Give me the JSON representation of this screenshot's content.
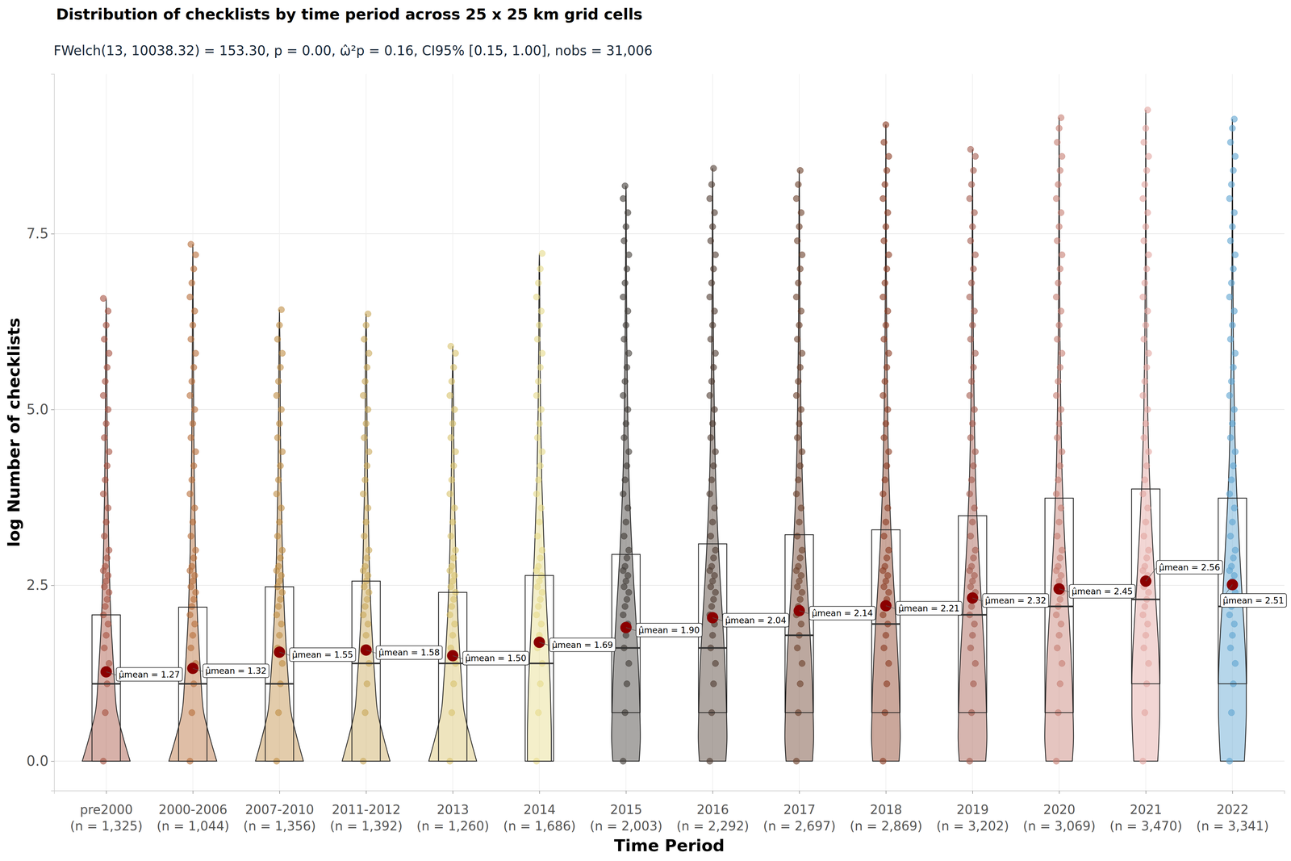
{
  "chart_data": {
    "type": "violin_box",
    "title": "Distribution of checklists by time period across 25 x 25 km grid cells",
    "subtitle": "FWelch(13, 10038.32) = 153.30, p = 0.00, ω̂²p = 0.16, CI95% [0.15, 1.00], nobs = 31,006",
    "x_label": "Time Period",
    "y_label": "log Number of checklists",
    "categories": [
      "pre2000",
      "2000-2006",
      "2007-2010",
      "2011-2012",
      "2013",
      "2014",
      "2015",
      "2016",
      "2017",
      "2018",
      "2019",
      "2020",
      "2021",
      "2022"
    ],
    "category_counts": [
      "(n = 1,325)",
      "(n = 1,044)",
      "(n = 1,356)",
      "(n = 1,392)",
      "(n = 1,260)",
      "(n = 1,686)",
      "(n = 2,003)",
      "(n = 2,292)",
      "(n = 2,697)",
      "(n = 2,869)",
      "(n = 3,202)",
      "(n = 3,069)",
      "(n = 3,470)",
      "(n = 3,341)"
    ],
    "colors": [
      "#A65141",
      "#B86E3A",
      "#C08D45",
      "#C9A95A",
      "#D9C36E",
      "#E6DB8A",
      "#3F3A36",
      "#4E3B30",
      "#6B3F2A",
      "#8A3B22",
      "#A35B4E",
      "#C67E73",
      "#E3A5A0",
      "#5DA3D0"
    ],
    "ylim": [
      -0.42,
      9.77
    ],
    "yticks": [
      {
        "value": 0,
        "label": "0.0"
      },
      2.5,
      {
        "value": 5,
        "label": "5.0"
      },
      7.5
    ],
    "grid": true,
    "min": [
      0,
      0,
      0,
      0,
      0,
      0,
      0,
      0,
      0,
      0,
      0,
      0,
      0,
      0
    ],
    "q1": [
      0,
      0,
      0,
      0,
      0,
      0,
      0.69,
      0.69,
      0.69,
      0.69,
      0.69,
      0.69,
      1.1,
      1.1
    ],
    "median": [
      1.1,
      1.1,
      1.1,
      1.39,
      1.39,
      1.39,
      1.61,
      1.61,
      1.79,
      1.95,
      2.08,
      2.2,
      2.3,
      2.2
    ],
    "q3": [
      2.08,
      2.19,
      2.48,
      2.56,
      2.4,
      2.64,
      2.94,
      3.09,
      3.22,
      3.29,
      3.49,
      3.74,
      3.87,
      3.74
    ],
    "max": [
      6.58,
      7.35,
      6.42,
      6.36,
      5.9,
      7.22,
      8.18,
      8.43,
      8.4,
      9.05,
      8.7,
      9.15,
      9.26,
      9.13
    ],
    "means": [
      1.27,
      1.32,
      1.55,
      1.58,
      1.5,
      1.69,
      1.9,
      2.04,
      2.14,
      2.21,
      2.32,
      2.45,
      2.56,
      2.51
    ],
    "mean_labels": [
      "μ̂mean = 1.27",
      "μ̂mean = 1.32",
      "μ̂mean = 1.55",
      "μ̂mean = 1.58",
      "μ̂mean = 1.50",
      "μ̂mean = 1.69",
      "μ̂mean = 1.90",
      "μ̂mean = 2.04",
      "μ̂mean = 2.14",
      "μ̂mean = 2.21",
      "μ̂mean = 2.32",
      "μ̂mean = 2.45",
      "μ̂mean = 2.56",
      "μ̂mean = 2.51"
    ],
    "violin_levels": [
      0,
      0.35,
      0.7,
      1.1,
      1.5,
      2,
      2.5,
      3,
      4,
      5,
      6,
      7,
      8,
      9
    ],
    "violin_density": [
      [
        1.0,
        0.7,
        0.45,
        0.35,
        0.28,
        0.2,
        0.15,
        0.11,
        0.06,
        0.035,
        0.02,
        0.01,
        0.005,
        0.002
      ],
      [
        1.0,
        0.7,
        0.45,
        0.35,
        0.28,
        0.2,
        0.15,
        0.11,
        0.06,
        0.035,
        0.02,
        0.01,
        0.005,
        0.002
      ],
      [
        1.0,
        0.72,
        0.48,
        0.38,
        0.3,
        0.22,
        0.16,
        0.12,
        0.06,
        0.035,
        0.02,
        0.01,
        0.005,
        0.002
      ],
      [
        1.0,
        0.72,
        0.48,
        0.38,
        0.3,
        0.22,
        0.16,
        0.12,
        0.06,
        0.035,
        0.02,
        0.01,
        0.005,
        0.002
      ],
      [
        1.0,
        0.72,
        0.48,
        0.38,
        0.3,
        0.22,
        0.16,
        0.12,
        0.06,
        0.035,
        0.02,
        0.01,
        0.005,
        0.002
      ],
      [
        0.5,
        0.5,
        0.48,
        0.45,
        0.4,
        0.33,
        0.26,
        0.2,
        0.1,
        0.05,
        0.025,
        0.012,
        0.005,
        0.002
      ],
      [
        0.55,
        0.6,
        0.58,
        0.55,
        0.5,
        0.42,
        0.33,
        0.25,
        0.13,
        0.07,
        0.035,
        0.018,
        0.01,
        0.005
      ],
      [
        0.55,
        0.6,
        0.58,
        0.55,
        0.5,
        0.42,
        0.33,
        0.25,
        0.13,
        0.07,
        0.035,
        0.018,
        0.01,
        0.005
      ],
      [
        0.55,
        0.6,
        0.58,
        0.55,
        0.5,
        0.42,
        0.33,
        0.25,
        0.13,
        0.07,
        0.035,
        0.018,
        0.01,
        0.005
      ],
      [
        0.55,
        0.6,
        0.58,
        0.55,
        0.5,
        0.42,
        0.33,
        0.25,
        0.13,
        0.07,
        0.035,
        0.018,
        0.01,
        0.005
      ],
      [
        0.55,
        0.6,
        0.58,
        0.55,
        0.5,
        0.42,
        0.33,
        0.25,
        0.13,
        0.07,
        0.035,
        0.018,
        0.01,
        0.005
      ],
      [
        0.55,
        0.6,
        0.58,
        0.55,
        0.5,
        0.42,
        0.33,
        0.25,
        0.13,
        0.07,
        0.035,
        0.018,
        0.01,
        0.005
      ],
      [
        0.5,
        0.55,
        0.58,
        0.58,
        0.55,
        0.47,
        0.38,
        0.3,
        0.16,
        0.08,
        0.04,
        0.02,
        0.01,
        0.005
      ],
      [
        0.5,
        0.55,
        0.58,
        0.58,
        0.55,
        0.47,
        0.38,
        0.3,
        0.16,
        0.08,
        0.04,
        0.02,
        0.01,
        0.005
      ]
    ],
    "points": [
      [
        0,
        0.69,
        1.1,
        1.39,
        1.61,
        1.79,
        1.95,
        2.08,
        2.2,
        2.3,
        2.4,
        2.48,
        2.56,
        2.64,
        2.71,
        2.77,
        2.89,
        3,
        3.2,
        3.4,
        3.6,
        3.8,
        4,
        4.2,
        4.4,
        4.6,
        4.8,
        5,
        5.2,
        5.4,
        5.6,
        5.8,
        6,
        6.2,
        6.4,
        6.58
      ],
      [
        0,
        0.69,
        1.1,
        1.39,
        1.61,
        1.79,
        1.95,
        2.08,
        2.2,
        2.3,
        2.4,
        2.48,
        2.56,
        2.64,
        2.71,
        2.77,
        2.89,
        3,
        3.2,
        3.4,
        3.6,
        3.8,
        4,
        4.2,
        4.4,
        4.6,
        4.8,
        5,
        5.2,
        5.4,
        5.6,
        5.8,
        6,
        6.2,
        6.4,
        6.6,
        6.8,
        7,
        7.2,
        7.35
      ],
      [
        0,
        0.69,
        1.1,
        1.39,
        1.61,
        1.79,
        1.95,
        2.08,
        2.2,
        2.3,
        2.4,
        2.48,
        2.56,
        2.64,
        2.71,
        2.77,
        2.89,
        3,
        3.2,
        3.4,
        3.6,
        3.8,
        4,
        4.2,
        4.4,
        4.6,
        4.8,
        5,
        5.2,
        5.4,
        5.6,
        5.8,
        6,
        6.2,
        6.42
      ],
      [
        0,
        0.69,
        1.1,
        1.39,
        1.61,
        1.79,
        1.95,
        2.08,
        2.2,
        2.3,
        2.4,
        2.48,
        2.56,
        2.64,
        2.71,
        2.77,
        2.89,
        3,
        3.2,
        3.4,
        3.6,
        3.8,
        4,
        4.2,
        4.4,
        4.6,
        4.8,
        5,
        5.2,
        5.4,
        5.6,
        5.8,
        6,
        6.2,
        6.36
      ],
      [
        0,
        0.69,
        1.1,
        1.39,
        1.61,
        1.79,
        1.95,
        2.08,
        2.2,
        2.3,
        2.4,
        2.48,
        2.56,
        2.64,
        2.71,
        2.77,
        2.89,
        3,
        3.2,
        3.4,
        3.6,
        3.8,
        4,
        4.2,
        4.4,
        4.6,
        4.8,
        5,
        5.2,
        5.4,
        5.6,
        5.8,
        5.9
      ],
      [
        0,
        0.69,
        1.1,
        1.39,
        1.61,
        1.79,
        1.95,
        2.08,
        2.2,
        2.3,
        2.4,
        2.48,
        2.56,
        2.64,
        2.71,
        2.77,
        2.89,
        3,
        3.2,
        3.4,
        3.6,
        3.8,
        4,
        4.2,
        4.4,
        4.6,
        4.8,
        5,
        5.2,
        5.4,
        5.6,
        5.8,
        6,
        6.2,
        6.4,
        6.6,
        6.8,
        7,
        7.22
      ],
      [
        0,
        0.69,
        1.1,
        1.39,
        1.61,
        1.79,
        1.95,
        2.08,
        2.2,
        2.3,
        2.4,
        2.48,
        2.56,
        2.64,
        2.71,
        2.77,
        2.89,
        3,
        3.2,
        3.4,
        3.6,
        3.8,
        4,
        4.2,
        4.4,
        4.6,
        4.8,
        5,
        5.2,
        5.4,
        5.6,
        5.8,
        6,
        6.2,
        6.4,
        6.6,
        6.8,
        7,
        7.2,
        7.4,
        7.6,
        7.8,
        8,
        8.18
      ],
      [
        0,
        0.69,
        1.1,
        1.39,
        1.61,
        1.79,
        1.95,
        2.08,
        2.2,
        2.3,
        2.4,
        2.48,
        2.56,
        2.64,
        2.71,
        2.77,
        2.89,
        3,
        3.2,
        3.4,
        3.6,
        3.8,
        4,
        4.2,
        4.4,
        4.6,
        4.8,
        5,
        5.2,
        5.4,
        5.6,
        5.8,
        6,
        6.2,
        6.4,
        6.6,
        6.8,
        7,
        7.2,
        7.4,
        7.6,
        7.8,
        8,
        8.2,
        8.43
      ],
      [
        0,
        0.69,
        1.1,
        1.39,
        1.61,
        1.79,
        1.95,
        2.08,
        2.2,
        2.3,
        2.4,
        2.48,
        2.56,
        2.64,
        2.71,
        2.77,
        2.89,
        3,
        3.2,
        3.4,
        3.6,
        3.8,
        4,
        4.2,
        4.4,
        4.6,
        4.8,
        5,
        5.2,
        5.4,
        5.6,
        5.8,
        6,
        6.2,
        6.4,
        6.6,
        6.8,
        7,
        7.2,
        7.4,
        7.6,
        7.8,
        8,
        8.2,
        8.4
      ],
      [
        0,
        0.69,
        1.1,
        1.39,
        1.61,
        1.79,
        1.95,
        2.08,
        2.2,
        2.3,
        2.4,
        2.48,
        2.56,
        2.64,
        2.71,
        2.77,
        2.89,
        3,
        3.2,
        3.4,
        3.6,
        3.8,
        4,
        4.2,
        4.4,
        4.6,
        4.8,
        5,
        5.2,
        5.4,
        5.6,
        5.8,
        6,
        6.2,
        6.4,
        6.6,
        6.8,
        7,
        7.2,
        7.4,
        7.6,
        7.8,
        8,
        8.2,
        8.4,
        8.6,
        8.8,
        9.05
      ],
      [
        0,
        0.69,
        1.1,
        1.39,
        1.61,
        1.79,
        1.95,
        2.08,
        2.2,
        2.3,
        2.4,
        2.48,
        2.56,
        2.64,
        2.71,
        2.77,
        2.89,
        3,
        3.2,
        3.4,
        3.6,
        3.8,
        4,
        4.2,
        4.4,
        4.6,
        4.8,
        5,
        5.2,
        5.4,
        5.6,
        5.8,
        6,
        6.2,
        6.4,
        6.6,
        6.8,
        7,
        7.2,
        7.4,
        7.6,
        7.8,
        8,
        8.2,
        8.4,
        8.6,
        8.7
      ],
      [
        0,
        0.69,
        1.1,
        1.39,
        1.61,
        1.79,
        1.95,
        2.08,
        2.2,
        2.3,
        2.4,
        2.48,
        2.56,
        2.64,
        2.71,
        2.77,
        2.89,
        3,
        3.2,
        3.4,
        3.6,
        3.8,
        4,
        4.2,
        4.4,
        4.6,
        4.8,
        5,
        5.2,
        5.4,
        5.6,
        5.8,
        6,
        6.2,
        6.4,
        6.6,
        6.8,
        7,
        7.2,
        7.4,
        7.6,
        7.8,
        8,
        8.2,
        8.4,
        8.6,
        8.8,
        9,
        9.15
      ],
      [
        0,
        0.69,
        1.1,
        1.39,
        1.61,
        1.79,
        1.95,
        2.08,
        2.2,
        2.3,
        2.4,
        2.48,
        2.56,
        2.64,
        2.71,
        2.77,
        2.89,
        3,
        3.2,
        3.4,
        3.6,
        3.8,
        4,
        4.2,
        4.4,
        4.6,
        4.8,
        5,
        5.2,
        5.4,
        5.6,
        5.8,
        6,
        6.2,
        6.4,
        6.6,
        6.8,
        7,
        7.2,
        7.4,
        7.6,
        7.8,
        8,
        8.2,
        8.4,
        8.6,
        8.8,
        9,
        9.26
      ],
      [
        0,
        0.69,
        1.1,
        1.39,
        1.61,
        1.79,
        1.95,
        2.08,
        2.2,
        2.3,
        2.4,
        2.48,
        2.56,
        2.64,
        2.71,
        2.77,
        2.89,
        3,
        3.2,
        3.4,
        3.6,
        3.8,
        4,
        4.2,
        4.4,
        4.6,
        4.8,
        5,
        5.2,
        5.4,
        5.6,
        5.8,
        6,
        6.2,
        6.4,
        6.6,
        6.8,
        7,
        7.2,
        7.4,
        7.6,
        7.8,
        8,
        8.2,
        8.4,
        8.6,
        8.8,
        9,
        9.13
      ]
    ]
  }
}
